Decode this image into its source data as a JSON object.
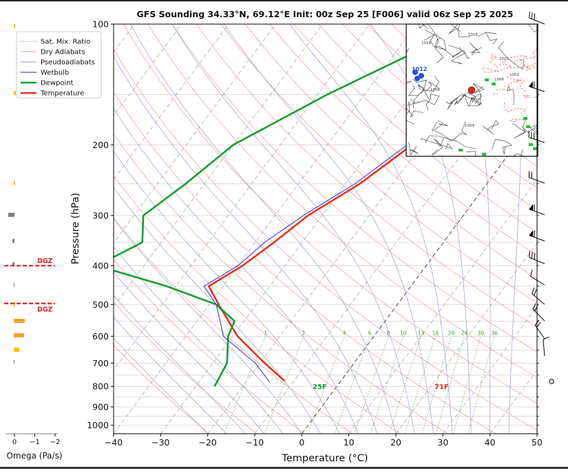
{
  "chart_data": {
    "type": "line",
    "title": "GFS Sounding 34.33°N, 69.12°E Init: 00z Sep 25 [F006] valid 06z Sep 25 2025",
    "xlabel": "Temperature (°C)",
    "ylabel": "Pressure (hPa)",
    "xlim": [
      -40,
      50
    ],
    "ylim": [
      1050,
      100
    ],
    "x_ticks": [
      "−40",
      "−30",
      "−20",
      "−10",
      "0",
      "10",
      "20",
      "30",
      "40",
      "50"
    ],
    "y_ticks": [
      "100",
      "200",
      "300",
      "400",
      "500",
      "600",
      "700",
      "800",
      "900",
      "1000"
    ],
    "y_scale": "log",
    "skew": true,
    "legend": {
      "placement": "top-left",
      "entries": [
        "Sat. Mix. Ratio",
        "Dry Adiabats",
        "Pseudoadiabats",
        "Wetbulb",
        "Dewpoint",
        "Temperature"
      ]
    },
    "series": [
      {
        "name": "Temperature",
        "color": "#e8311a",
        "points": [
          [
            -8.5,
            100
          ],
          [
            -16.5,
            150
          ],
          [
            -22,
            200
          ],
          [
            -27,
            250
          ],
          [
            -33,
            300
          ],
          [
            -36,
            350
          ],
          [
            -39,
            400
          ],
          [
            -43,
            450
          ],
          [
            -38,
            500
          ],
          [
            -29,
            600
          ],
          [
            -19,
            700
          ],
          [
            -12,
            775
          ]
        ]
      },
      {
        "name": "Dewpoint",
        "color": "#129e2a",
        "points": [
          [
            -28,
            100
          ],
          [
            -48,
            150
          ],
          [
            -60,
            200
          ],
          [
            -64,
            250
          ],
          [
            -68,
            300
          ],
          [
            -64,
            350
          ],
          [
            -70,
            400
          ],
          [
            -52,
            450
          ],
          [
            -38.5,
            500
          ],
          [
            -32,
            550
          ],
          [
            -31,
            600
          ],
          [
            -27,
            700
          ],
          [
            -26,
            800
          ]
        ]
      },
      {
        "name": "Wetbulb",
        "color": "#4d44d6",
        "points": [
          [
            -16.5,
            150
          ],
          [
            -23,
            200
          ],
          [
            -28,
            250
          ],
          [
            -34,
            300
          ],
          [
            -38,
            350
          ],
          [
            -40,
            400
          ],
          [
            -44,
            450
          ],
          [
            -38.5,
            500
          ],
          [
            -32,
            600
          ],
          [
            -21,
            700
          ],
          [
            -15,
            780
          ]
        ]
      }
    ],
    "annotations": [
      {
        "text": "71F",
        "color": "#e8311a"
      },
      {
        "text": "25F",
        "color": "#129e2a"
      }
    ],
    "mixing_ratio_labels": [
      "1",
      "2",
      "4",
      "6",
      "8",
      "10",
      "13",
      "16",
      "20",
      "24",
      "30",
      "36"
    ],
    "omega_panel": {
      "xlabel": "Omega (Pa/s)",
      "x_ticks": [
        "0",
        "−1",
        "−2"
      ],
      "dgz_label": "DGZ",
      "dgz_pressures": [
        400,
        497
      ]
    },
    "inset_map_labels": [
      "1012",
      "1014",
      "1016",
      "1010",
      "1008",
      "1006",
      "1004",
      "1002",
      "582"
    ]
  }
}
